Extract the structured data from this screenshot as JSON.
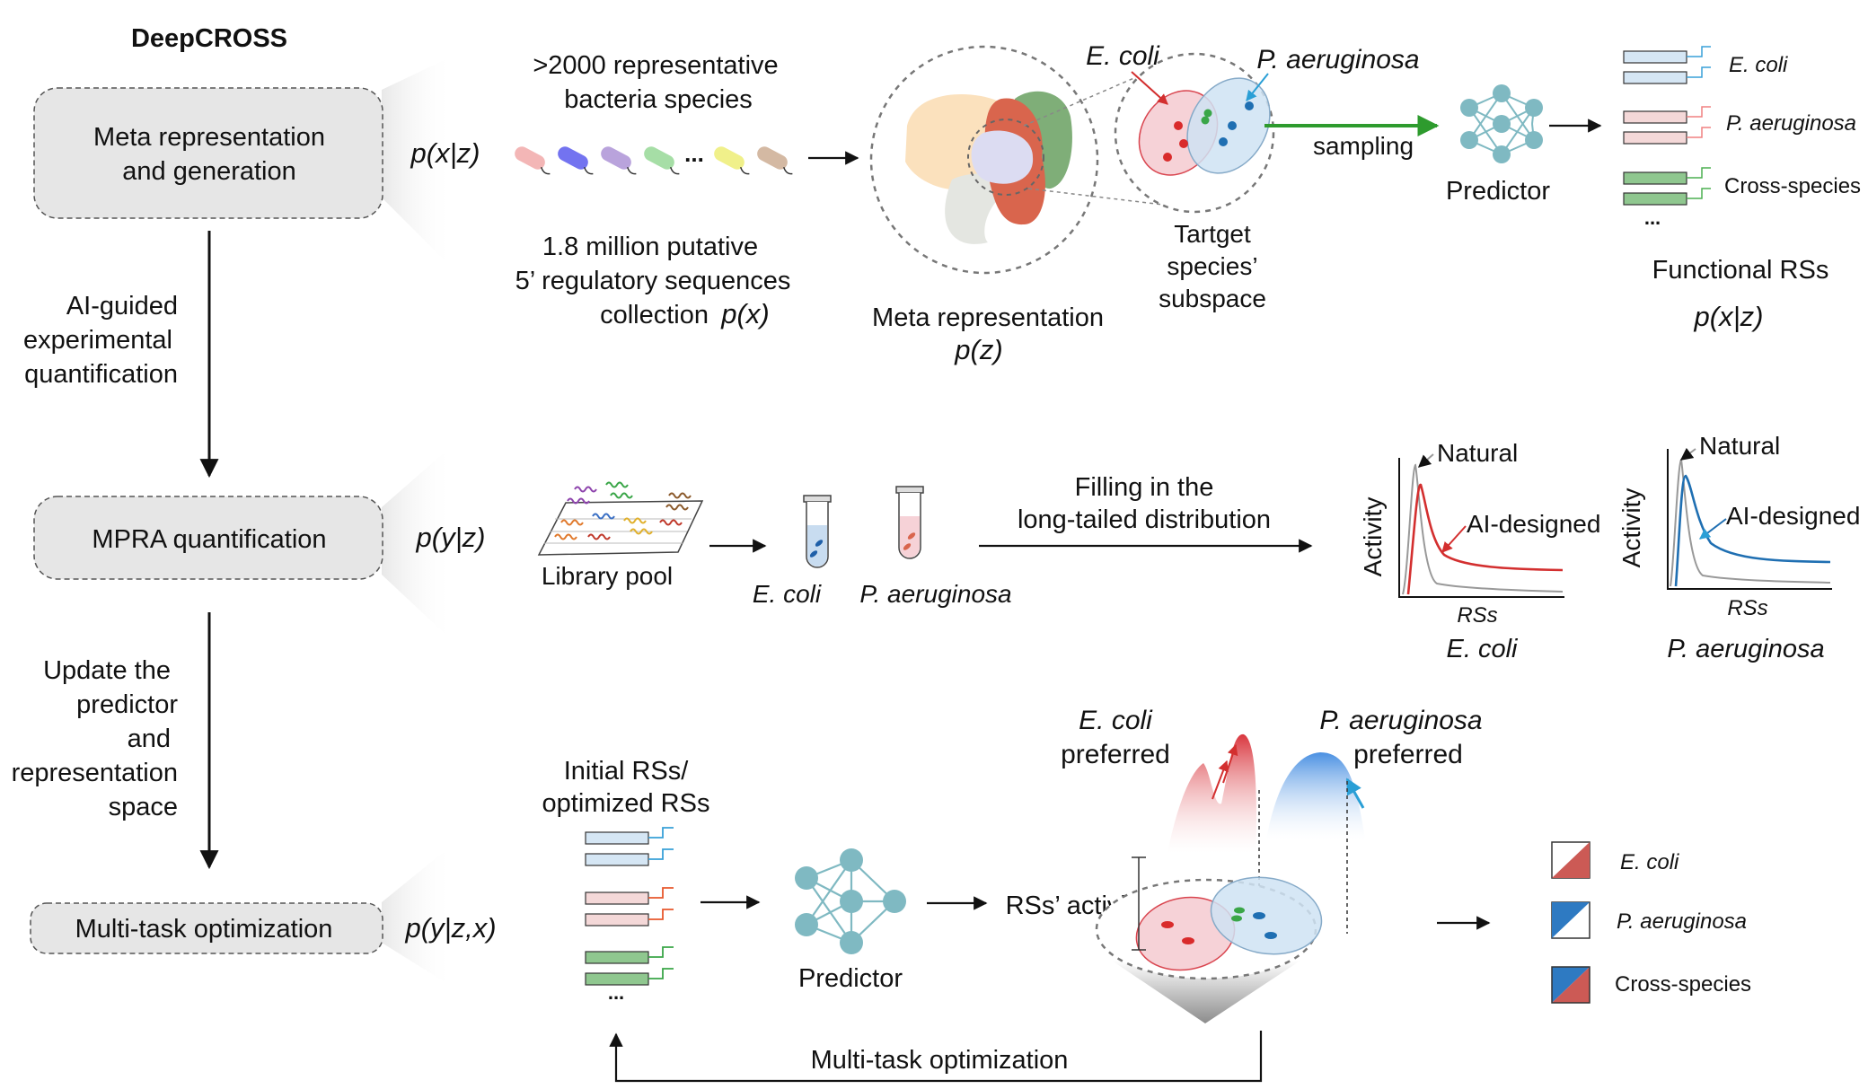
{
  "title": "DeepCROSS",
  "stages": {
    "meta": {
      "line1": "Meta representation",
      "line2": "and generation",
      "prob": "p(x|z)"
    },
    "mpra": {
      "label": "MPRA quantification",
      "prob": "p(y|z)"
    },
    "multitask": {
      "label": "Multi-task optimization",
      "prob": "p(y|z,x)"
    }
  },
  "arrows": {
    "ai_guided": [
      "AI-guided",
      "experimental",
      "quantification"
    ],
    "update": [
      "Update the",
      "predictor",
      "and",
      "representation",
      "space"
    ]
  },
  "row1": {
    "species_line1": ">2000 representative",
    "species_line2": "bacteria species",
    "ellipsis": "...",
    "seq_line1": "1.8 million putative",
    "seq_line2": "5’ regulatory sequences",
    "seq_line3": "collection",
    "seq_prob": "p(x)",
    "meta_label": "Meta representation",
    "meta_prob": "p(z)",
    "ecoli": "E. coli",
    "paeru": "P. aeruginosa",
    "target_line1": "Tartget",
    "target_line2": "species’",
    "target_line3": "subspace",
    "sampling": "sampling",
    "predictor": "Predictor",
    "out_ecoli": "E. coli",
    "out_paeru": "P. aeruginosa",
    "out_cross": "Cross-species",
    "out_ellipsis": "...",
    "functional": "Functional RSs",
    "functional_prob": "p(x|z)"
  },
  "row2": {
    "library": "Library pool",
    "ecoli": "E. coli",
    "paeru": "P. aeruginosa",
    "filling_line1": "Filling in the",
    "filling_line2": "long-tailed distribution",
    "plots": [
      {
        "species": "E. coli",
        "ylabel": "Activity",
        "xlabel": "RSs",
        "natural": "Natural",
        "designed": "AI-designed",
        "color": "#d32f2f"
      },
      {
        "species": "P. aeruginosa",
        "ylabel": "Activity",
        "xlabel": "RSs",
        "natural": "Natural",
        "designed": "AI-designed",
        "color": "#1f6fb2"
      }
    ]
  },
  "row3": {
    "initial_line1": "Initial RSs/",
    "initial_line2": "optimized RSs",
    "ellipsis": "...",
    "predictor": "Predictor",
    "activity": "RSs’ activity",
    "ecoli_pref_1": "E. coli",
    "ecoli_pref_2": "preferred",
    "paeru_pref_1": "P. aeruginosa",
    "paeru_pref_2": "preferred",
    "legend": [
      "E. coli",
      "P. aeruginosa",
      "Cross-species"
    ],
    "loop_label": "Multi-task optimization"
  },
  "colors": {
    "ecoli": "#d32f2f",
    "paeru": "#1f6fb2",
    "cross": "#3aa648",
    "node": "#7fb9c2"
  }
}
